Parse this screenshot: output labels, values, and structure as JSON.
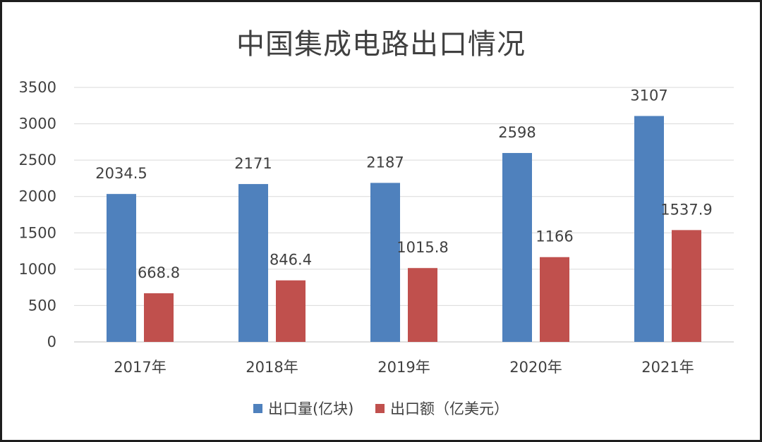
{
  "chart_data": {
    "type": "bar",
    "title": "中国集成电路出口情况",
    "categories": [
      "2017年",
      "2018年",
      "2019年",
      "2020年",
      "2021年"
    ],
    "series": [
      {
        "name": "出口量(亿块)",
        "values": [
          2034.5,
          2171,
          2187,
          2598,
          3107
        ],
        "labels": [
          "2034.5",
          "2171",
          "2187",
          "2598",
          "3107"
        ],
        "color": "#4f81bd"
      },
      {
        "name": "出口额（亿美元）",
        "values": [
          668.8,
          846.4,
          1015.8,
          1166,
          1537.9
        ],
        "labels": [
          "668.8",
          "846.4",
          "1015.8",
          "1166",
          "1537.9"
        ],
        "color": "#c0504d"
      }
    ],
    "ylim": [
      0,
      3500
    ],
    "yticks": [
      0,
      500,
      1000,
      1500,
      2000,
      2500,
      3000,
      3500
    ],
    "grid": true,
    "legend_position": "bottom"
  }
}
